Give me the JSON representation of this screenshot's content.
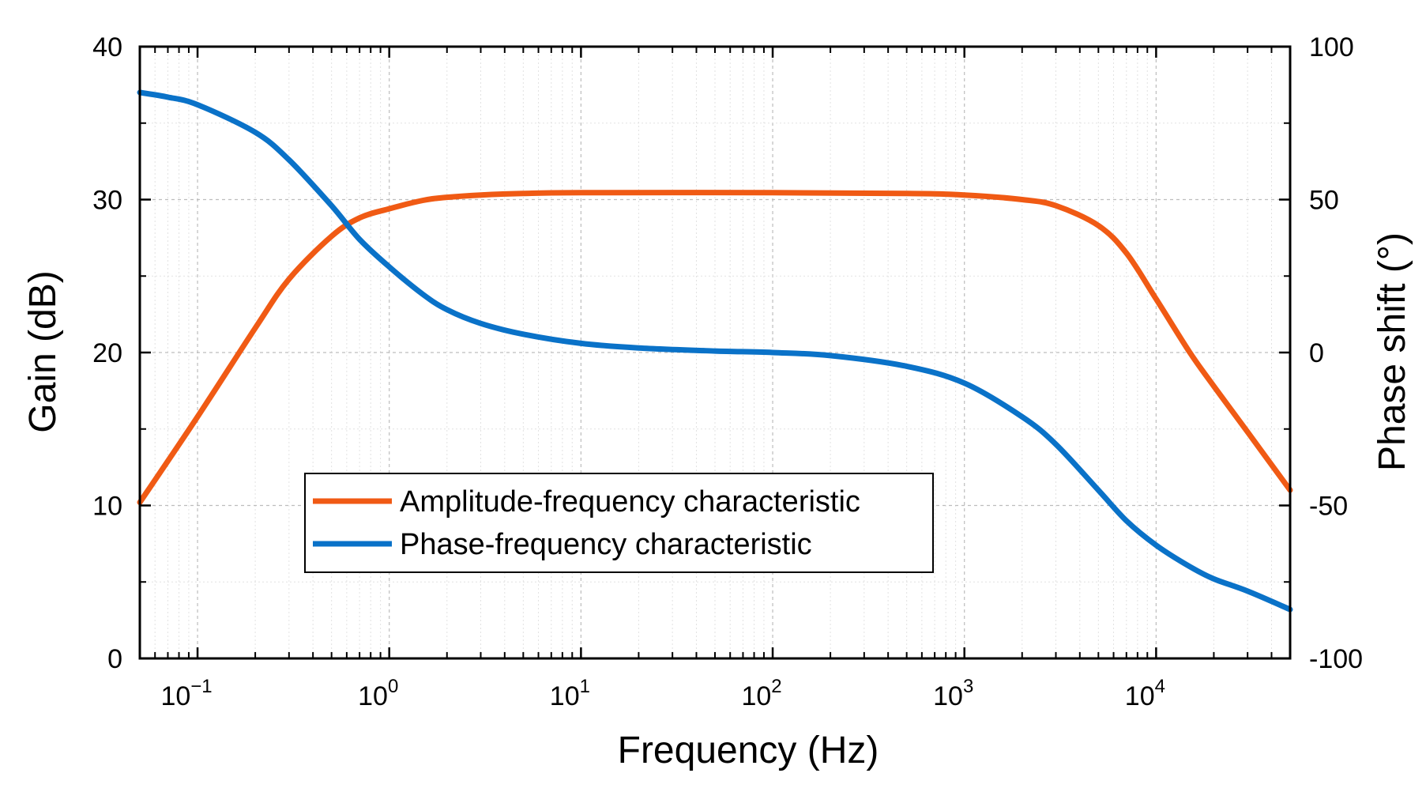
{
  "chart_data": {
    "type": "line",
    "xscale": "log",
    "xlabel": "Frequency (Hz)",
    "ylabel": "Gain (dB)",
    "y2label": "Phase shift (°)",
    "xlim": [
      0.05,
      50000
    ],
    "ylim": [
      0,
      40
    ],
    "y2lim": [
      -100,
      100
    ],
    "grid": true,
    "legend_position": "lower-left-center",
    "x_ticks": [
      {
        "base": "10",
        "exp": "−1"
      },
      {
        "base": "10",
        "exp": "0"
      },
      {
        "base": "10",
        "exp": "1"
      },
      {
        "base": "10",
        "exp": "2"
      },
      {
        "base": "10",
        "exp": "3"
      },
      {
        "base": "10",
        "exp": "4"
      }
    ],
    "y_ticks": [
      "0",
      "10",
      "20",
      "30",
      "40"
    ],
    "y2_ticks": [
      "-100",
      "-50",
      "0",
      "50",
      "100"
    ],
    "series": [
      {
        "name": "Amplitude-frequency characteristic",
        "axis": "left",
        "color": "#f05a14",
        "x": [
          0.05,
          0.1,
          0.2,
          0.3,
          0.5,
          0.7,
          1,
          1.5,
          2,
          3,
          5,
          10,
          100,
          500,
          1000,
          2000,
          3000,
          5000,
          7000,
          10000,
          15000,
          20000,
          30000,
          50000
        ],
        "y": [
          10.2,
          15.8,
          21.6,
          24.8,
          27.6,
          28.8,
          29.4,
          29.95,
          30.15,
          30.3,
          30.4,
          30.45,
          30.45,
          30.4,
          30.3,
          30.0,
          29.6,
          28.3,
          26.5,
          23.5,
          20.0,
          17.8,
          14.8,
          11.0
        ]
      },
      {
        "name": "Phase-frequency characteristic",
        "axis": "right",
        "color": "#0a72c8",
        "x": [
          0.05,
          0.07,
          0.1,
          0.2,
          0.3,
          0.5,
          0.7,
          1,
          1.5,
          2,
          3,
          5,
          10,
          20,
          50,
          100,
          200,
          500,
          1000,
          2000,
          3000,
          5000,
          7000,
          10000,
          15000,
          20000,
          30000,
          50000
        ],
        "y": [
          85,
          83.5,
          81,
          72,
          63,
          48,
          37,
          28,
          19,
          14,
          9.5,
          6,
          3,
          1.5,
          0.5,
          0,
          -1,
          -4.5,
          -10,
          -21,
          -30,
          -45,
          -55,
          -63,
          -70,
          -74,
          -78,
          -84
        ]
      }
    ]
  }
}
